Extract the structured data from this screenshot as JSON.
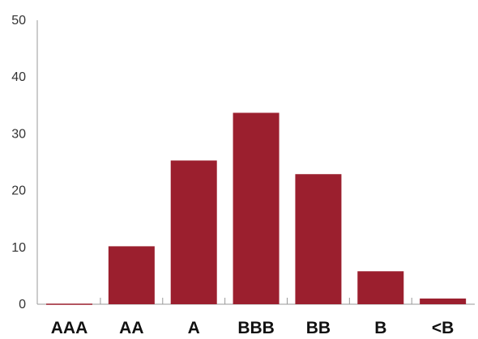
{
  "chart_data": {
    "type": "bar",
    "categories": [
      "AAA",
      "AA",
      "A",
      "BBB",
      "BB",
      "B",
      "<B"
    ],
    "values": [
      0.1,
      10.2,
      25.3,
      33.7,
      22.9,
      5.8,
      1.0
    ],
    "title": "",
    "xlabel": "",
    "ylabel": "",
    "ylim": [
      0,
      50
    ],
    "yticks": [
      "0",
      "10",
      "20",
      "30",
      "40",
      "50"
    ],
    "grid": false,
    "legend": "none",
    "bar_color": "#9B1F2E"
  }
}
